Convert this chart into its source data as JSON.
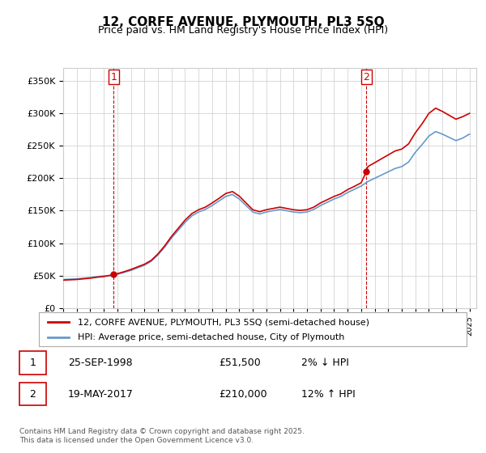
{
  "title": "12, CORFE AVENUE, PLYMOUTH, PL3 5SQ",
  "subtitle": "Price paid vs. HM Land Registry's House Price Index (HPI)",
  "legend_label_red": "12, CORFE AVENUE, PLYMOUTH, PL3 5SQ (semi-detached house)",
  "legend_label_blue": "HPI: Average price, semi-detached house, City of Plymouth",
  "annotation1_label": "1",
  "annotation1_date": "25-SEP-1998",
  "annotation1_price": "£51,500",
  "annotation1_hpi": "2% ↓ HPI",
  "annotation2_label": "2",
  "annotation2_date": "19-MAY-2017",
  "annotation2_price": "£210,000",
  "annotation2_hpi": "12% ↑ HPI",
  "footer": "Contains HM Land Registry data © Crown copyright and database right 2025.\nThis data is licensed under the Open Government Licence v3.0.",
  "sale1_year": 1998.73,
  "sale1_price": 51500,
  "sale2_year": 2017.38,
  "sale2_price": 210000,
  "ylim_min": 0,
  "ylim_max": 370000,
  "xlim_min": 1995,
  "xlim_max": 2025.5,
  "background_color": "#ffffff",
  "grid_color": "#cccccc",
  "red_color": "#cc0000",
  "blue_color": "#6699cc"
}
